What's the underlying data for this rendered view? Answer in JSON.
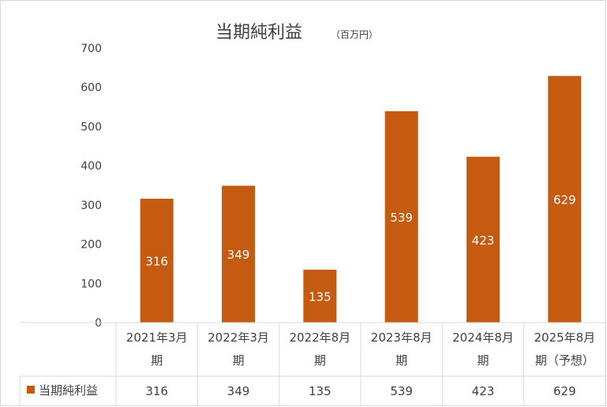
{
  "chart_data": {
    "type": "bar",
    "title": "当期純利益",
    "title_unit": "（百万円）",
    "categories": [
      [
        "2021年3月",
        "期"
      ],
      [
        "2022年3月",
        "期"
      ],
      [
        "2022年8月",
        "期"
      ],
      [
        "2023年8月",
        "期"
      ],
      [
        "2024年8月",
        "期"
      ],
      [
        "2025年8月",
        "期（予想）"
      ]
    ],
    "series": [
      {
        "name": "当期純利益",
        "values": [
          316,
          349,
          135,
          539,
          423,
          629
        ],
        "color": "#c55a11"
      }
    ],
    "ylim": [
      0,
      700
    ],
    "yticks": [
      0,
      100,
      200,
      300,
      400,
      500,
      600,
      700
    ],
    "data_labels": true,
    "data_table": true,
    "grid": false
  }
}
